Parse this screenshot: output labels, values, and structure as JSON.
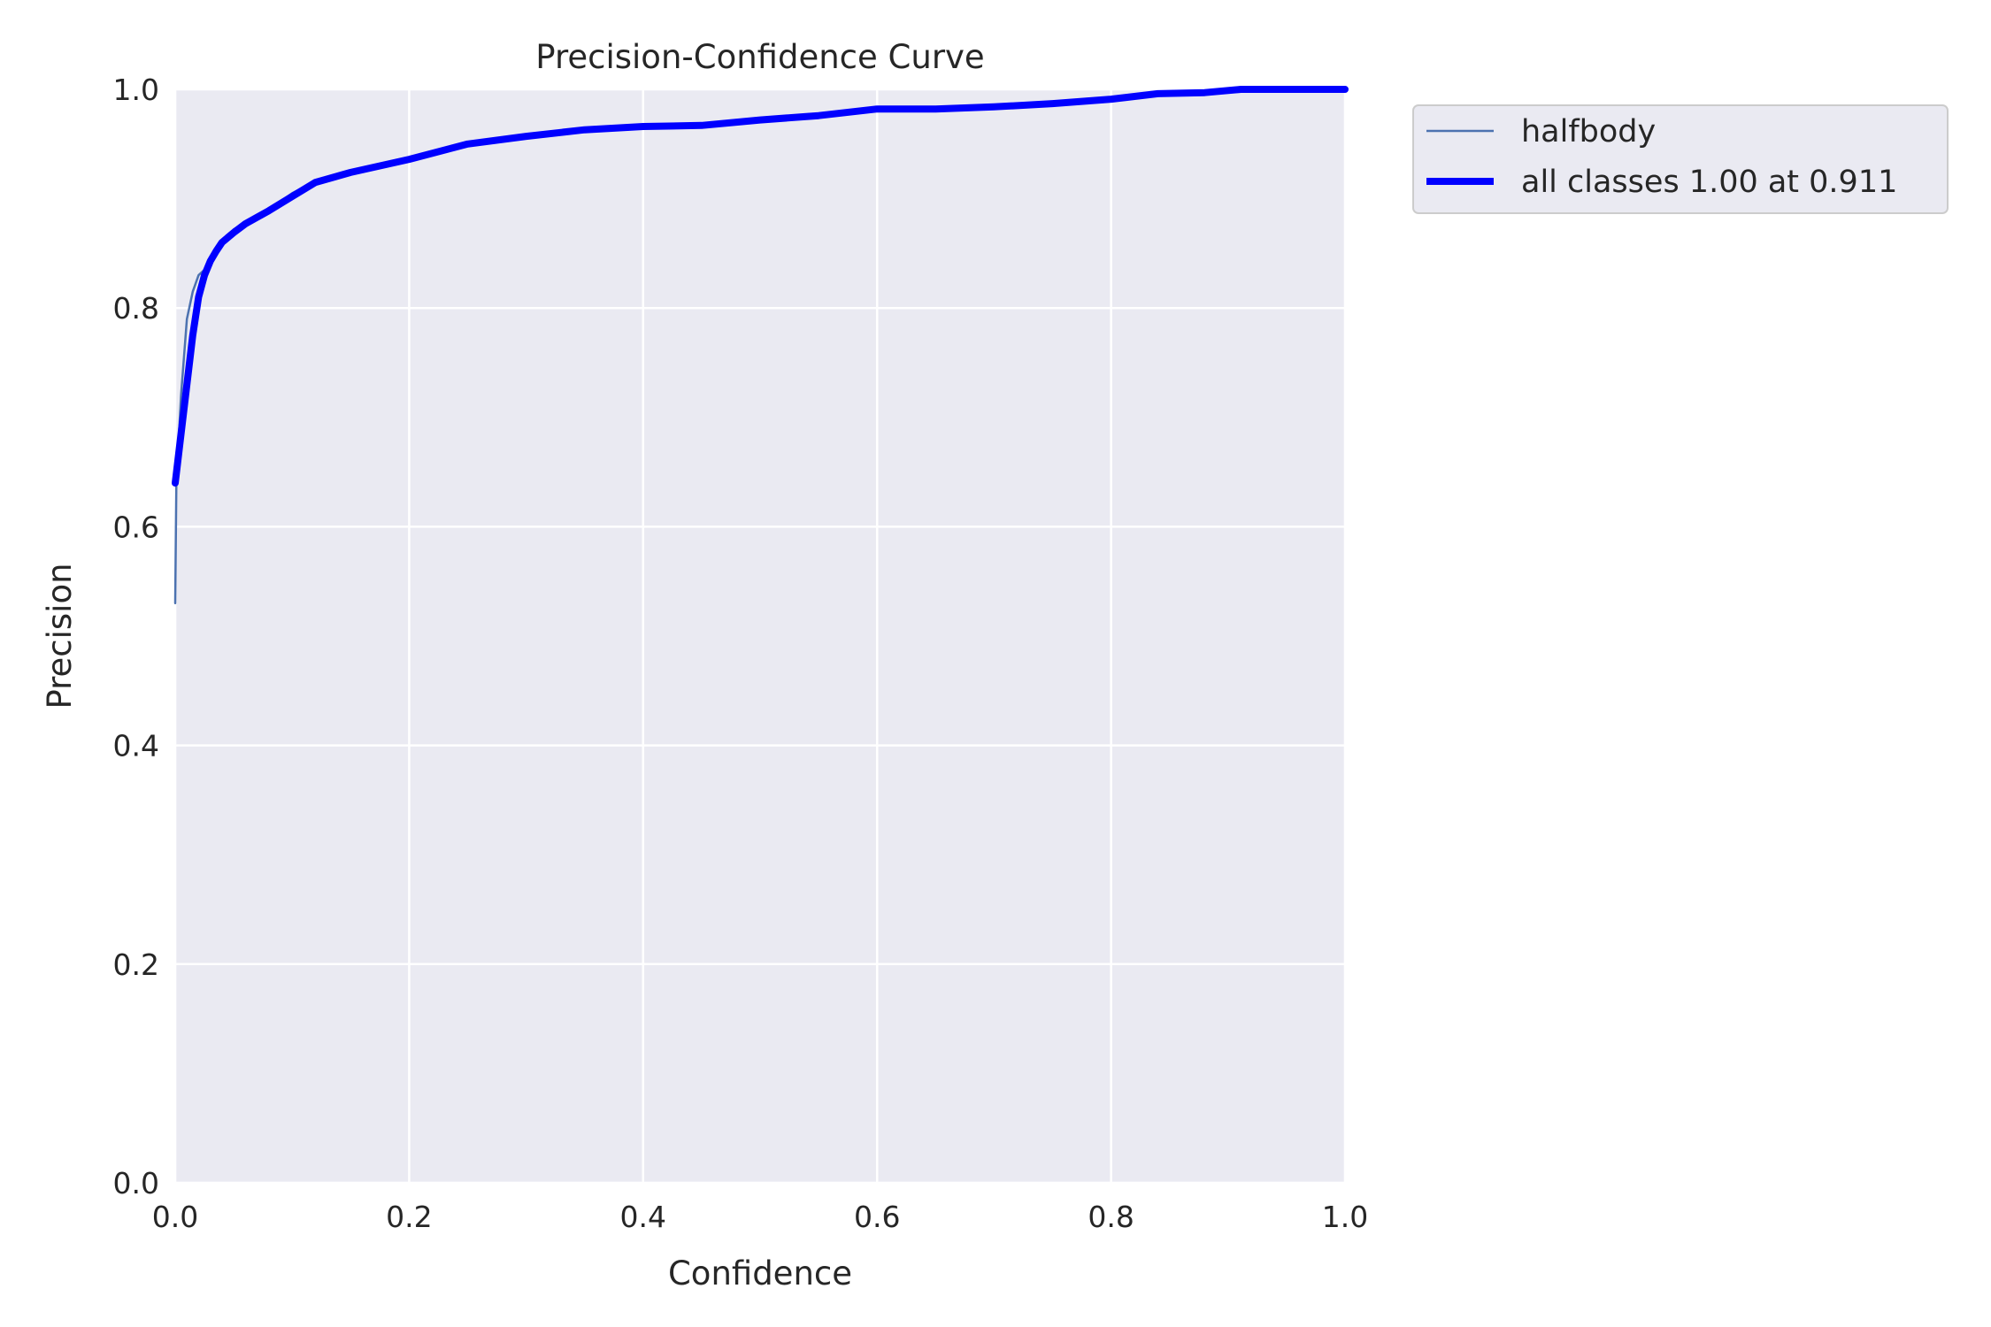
{
  "chart_data": {
    "type": "line",
    "title": "Precision-Confidence Curve",
    "xlabel": "Confidence",
    "ylabel": "Precision",
    "xlim": [
      0,
      1
    ],
    "ylim": [
      0,
      1
    ],
    "xticks": [
      "0.0",
      "0.2",
      "0.4",
      "0.6",
      "0.8",
      "1.0"
    ],
    "yticks": [
      "0.0",
      "0.2",
      "0.4",
      "0.6",
      "0.8",
      "1.0"
    ],
    "grid": true,
    "legend_position": "outside-top-right",
    "background_color": "#eaeaf2",
    "series": [
      {
        "name": "halfbody",
        "color": "#4c72b0",
        "x": [
          0.0,
          0.001,
          0.005,
          0.01,
          0.015,
          0.02,
          0.025,
          0.03,
          0.04,
          0.05,
          0.06,
          0.07,
          0.08,
          0.1,
          0.12,
          0.15,
          0.2,
          0.25,
          0.3,
          0.35,
          0.4,
          0.45,
          0.5,
          0.55,
          0.6,
          0.65,
          0.7,
          0.75,
          0.8,
          0.84,
          0.88,
          0.91,
          0.95,
          1.0
        ],
        "y": [
          0.53,
          0.64,
          0.72,
          0.79,
          0.815,
          0.83,
          0.835,
          0.845,
          0.86,
          0.872,
          0.878,
          0.884,
          0.89,
          0.905,
          0.916,
          0.925,
          0.937,
          0.95,
          0.957,
          0.963,
          0.966,
          0.967,
          0.972,
          0.976,
          0.982,
          0.982,
          0.984,
          0.987,
          0.991,
          0.996,
          0.995,
          1.0,
          1.0,
          1.0
        ]
      },
      {
        "name": "all classes 1.00 at 0.911",
        "color": "#0000ff",
        "x": [
          0.0,
          0.005,
          0.01,
          0.015,
          0.02,
          0.025,
          0.03,
          0.035,
          0.04,
          0.05,
          0.06,
          0.07,
          0.08,
          0.1,
          0.12,
          0.15,
          0.2,
          0.25,
          0.3,
          0.35,
          0.4,
          0.45,
          0.5,
          0.55,
          0.6,
          0.65,
          0.7,
          0.75,
          0.8,
          0.84,
          0.88,
          0.911,
          0.95,
          1.0
        ],
        "y": [
          0.64,
          0.685,
          0.73,
          0.775,
          0.81,
          0.83,
          0.843,
          0.852,
          0.86,
          0.869,
          0.877,
          0.883,
          0.889,
          0.902,
          0.915,
          0.924,
          0.936,
          0.95,
          0.957,
          0.963,
          0.966,
          0.967,
          0.972,
          0.976,
          0.982,
          0.982,
          0.984,
          0.987,
          0.991,
          0.996,
          0.997,
          1.0,
          1.0,
          1.0
        ]
      }
    ]
  }
}
